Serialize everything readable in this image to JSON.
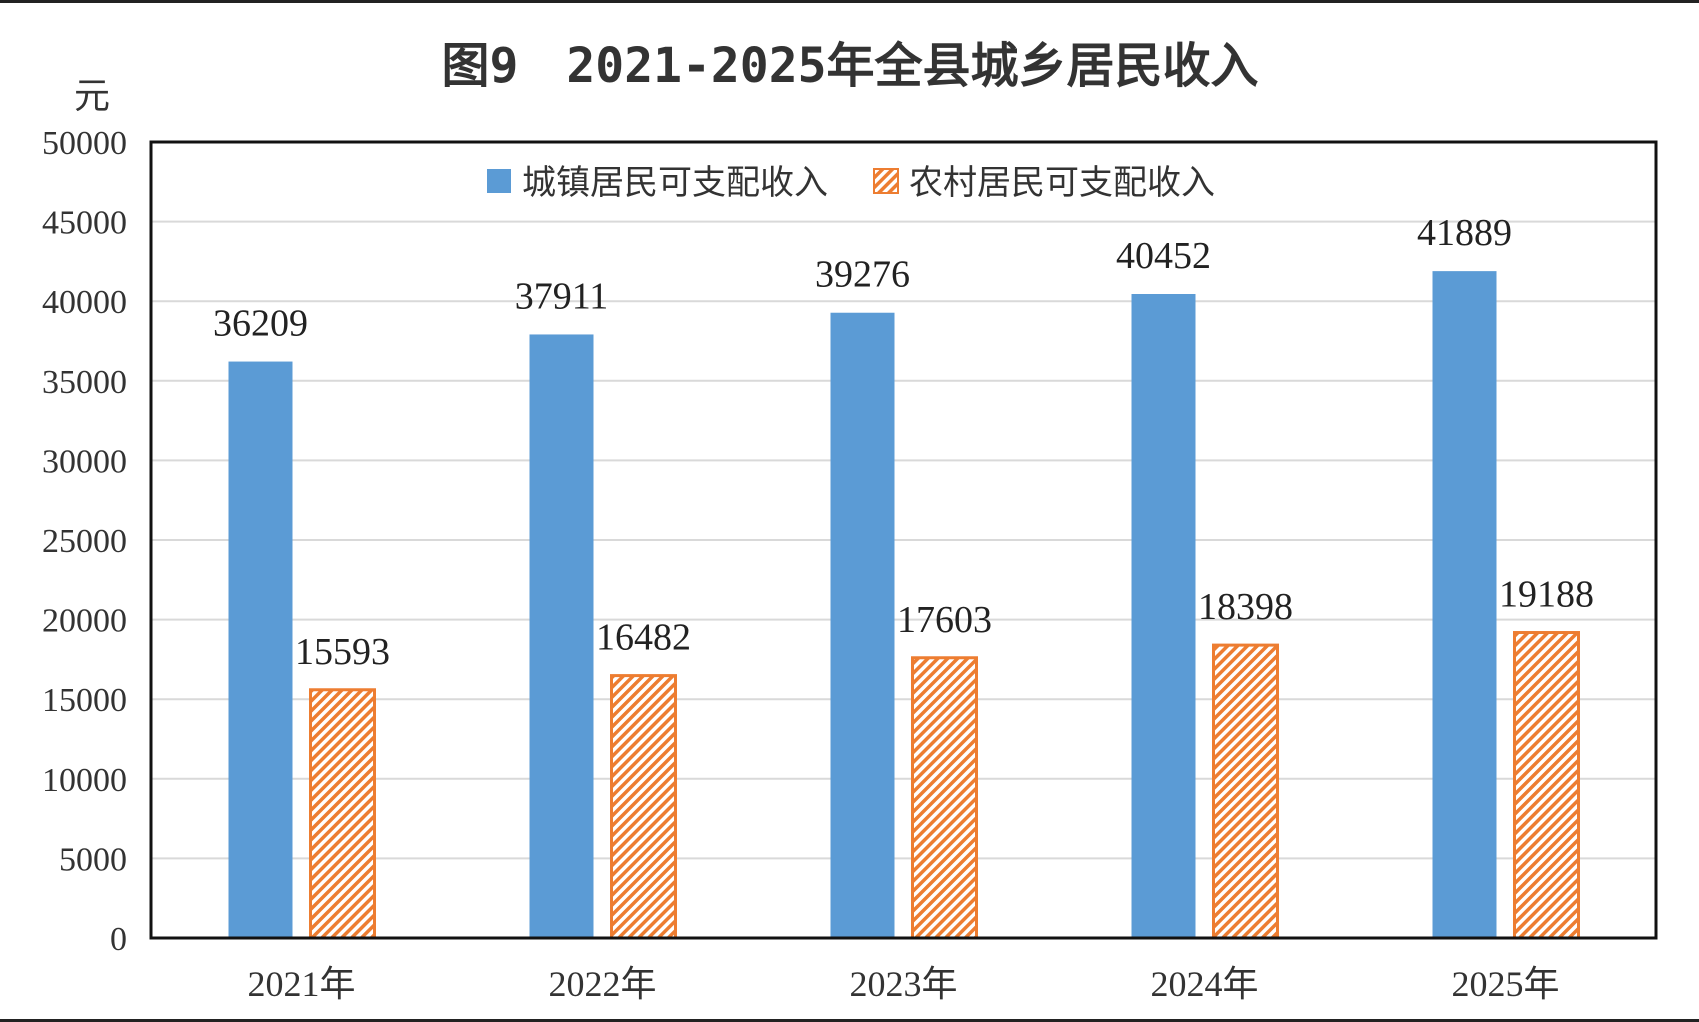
{
  "chart_data": {
    "type": "bar",
    "title": "图9　2021-2025年全县城乡居民收入",
    "ylabel": "元",
    "xlabel": "",
    "categories": [
      "2021年",
      "2022年",
      "2023年",
      "2024年",
      "2025年"
    ],
    "ylim": [
      0,
      50000
    ],
    "yticks": [
      0,
      5000,
      10000,
      15000,
      20000,
      25000,
      30000,
      35000,
      40000,
      45000,
      50000
    ],
    "grid": true,
    "legend_position": "top-center",
    "series": [
      {
        "name": "城镇居民可支配收入",
        "values": [
          36209,
          37911,
          39276,
          40452,
          41889
        ],
        "color": "#5B9BD5",
        "fill": "solid"
      },
      {
        "name": "农村居民可支配收入",
        "values": [
          15593,
          16482,
          17603,
          18398,
          19188
        ],
        "color": "#ED7D31",
        "fill": "diagonal-hatch"
      }
    ]
  }
}
